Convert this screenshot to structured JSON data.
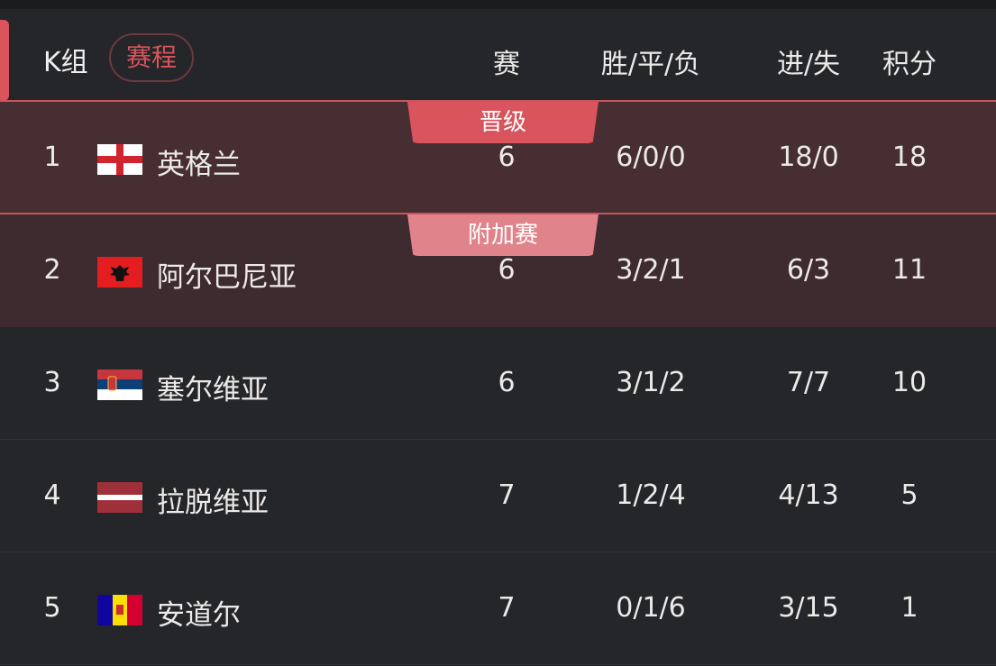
{
  "header": {
    "group": "K组",
    "schedule_label": "赛程",
    "cols": {
      "played": "赛",
      "wdl": "胜/平/负",
      "goals": "进/失",
      "points": "积分"
    }
  },
  "badges": {
    "qualified": "晋级",
    "playoff": "附加赛"
  },
  "colors": {
    "accent": "#d9545c",
    "qualified_bg": "#472e33",
    "playoff_bg": "#3e2b2f",
    "playoff_badge": "#e0838a"
  },
  "rows": [
    {
      "rank": "1",
      "flag": "england-flag",
      "team": "英格兰",
      "played": "6",
      "wdl": "6/0/0",
      "goals": "18/0",
      "points": "18"
    },
    {
      "rank": "2",
      "flag": "albania-flag",
      "team": "阿尔巴尼亚",
      "played": "6",
      "wdl": "3/2/1",
      "goals": "6/3",
      "points": "11"
    },
    {
      "rank": "3",
      "flag": "serbia-flag",
      "team": "塞尔维亚",
      "played": "6",
      "wdl": "3/1/2",
      "goals": "7/7",
      "points": "10"
    },
    {
      "rank": "4",
      "flag": "latvia-flag",
      "team": "拉脱维亚",
      "played": "7",
      "wdl": "1/2/4",
      "goals": "4/13",
      "points": "5"
    },
    {
      "rank": "5",
      "flag": "andorra-flag",
      "team": "安道尔",
      "played": "7",
      "wdl": "0/1/6",
      "goals": "3/15",
      "points": "1"
    }
  ]
}
